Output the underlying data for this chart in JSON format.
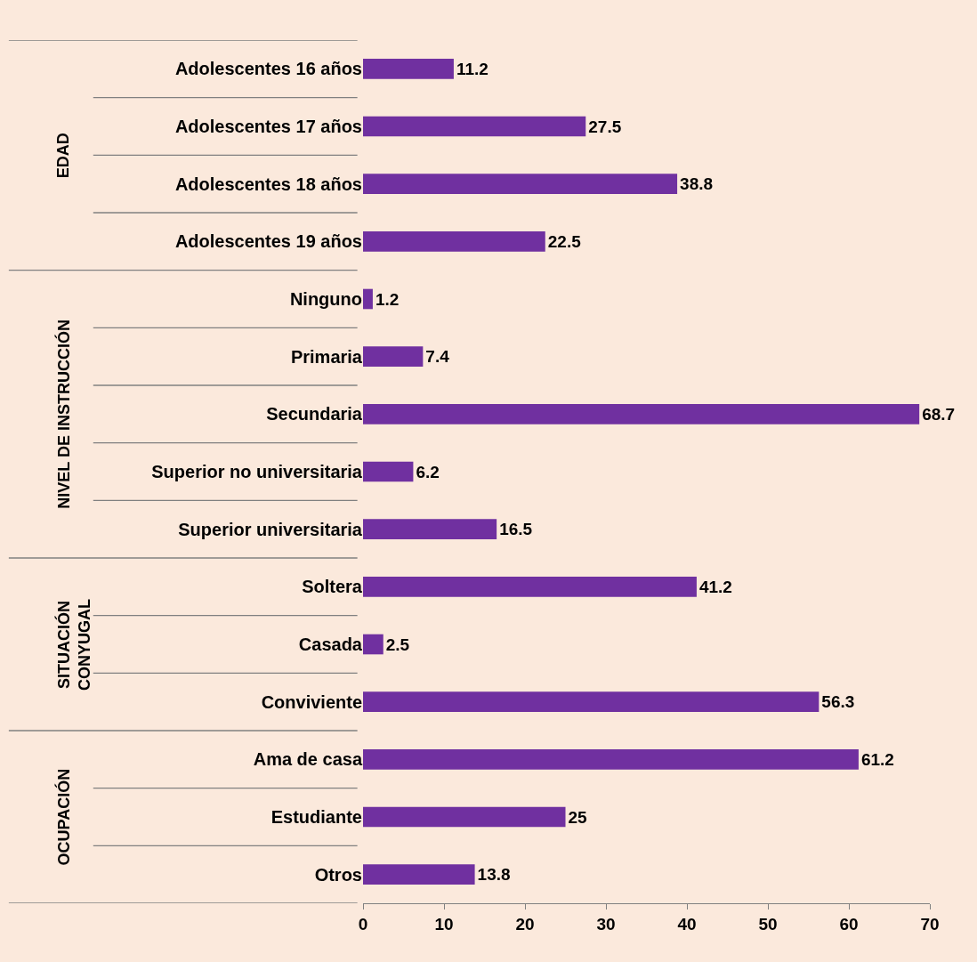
{
  "chart_data": {
    "type": "bar",
    "orientation": "horizontal",
    "categories": [
      "Adolescentes 16 años",
      "Adolescentes 17 años",
      "Adolescentes 18 años",
      "Adolescentes 19 años",
      "Ninguno",
      "Primaria",
      "Secundaria",
      "Superior no universitaria",
      "Superior universitaria",
      "Soltera",
      "Casada",
      "Conviviente",
      "Ama de casa",
      "Estudiante",
      "Otros"
    ],
    "values": [
      11.2,
      27.5,
      38.8,
      22.5,
      1.2,
      7.4,
      68.7,
      6.2,
      16.5,
      41.2,
      2.5,
      56.3,
      61.2,
      25,
      13.8
    ],
    "color": "#7030a0",
    "xlim": [
      0,
      70
    ],
    "xticks": [
      0,
      10,
      20,
      30,
      40,
      50,
      60,
      70
    ],
    "grid": false,
    "data_labels": true,
    "annotations": [
      "EDAD",
      "NIVEL DE INSTRUCCIÓN",
      "SITUACIÓN CONYUGAL",
      "OCUPACIÓN"
    ]
  }
}
